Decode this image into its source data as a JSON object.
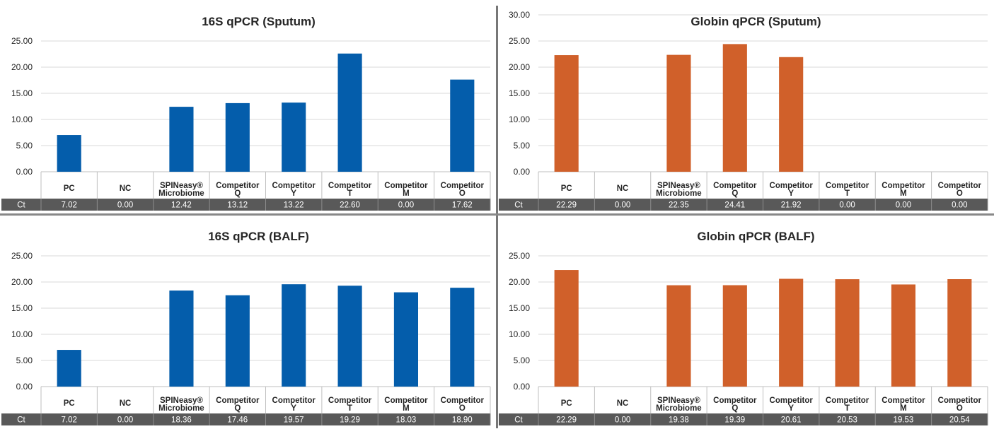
{
  "chart_data": [
    {
      "type": "bar",
      "title": "16S qPCR (Sputum)",
      "color": "#045dab",
      "categories": [
        [
          "PC"
        ],
        [
          "NC"
        ],
        [
          "SPINeasy®",
          "Microbiome"
        ],
        [
          "Competitor",
          "Q"
        ],
        [
          "Competitor",
          "Y"
        ],
        [
          "Competitor",
          "T"
        ],
        [
          "Competitor",
          "M"
        ],
        [
          "Competitor",
          "O"
        ]
      ],
      "table_label": "Ct",
      "values": [
        7.02,
        0.0,
        12.42,
        13.12,
        13.22,
        22.6,
        0.0,
        17.62
      ],
      "value_labels": [
        "7.02",
        "0.00",
        "12.42",
        "13.12",
        "13.22",
        "22.60",
        "0.00",
        "17.62"
      ],
      "ylim": [
        0,
        25
      ],
      "yticks": [
        "0.00",
        "5.00",
        "10.00",
        "15.00",
        "20.00",
        "25.00"
      ],
      "grid": true
    },
    {
      "type": "bar",
      "title": "Globin qPCR (Sputum)",
      "color": "#d0602a",
      "categories": [
        [
          "PC"
        ],
        [
          "NC"
        ],
        [
          "SPINeasy®",
          "Microbiome"
        ],
        [
          "Competitor",
          "Q"
        ],
        [
          "Competitor",
          "Y"
        ],
        [
          "Competitor",
          "T"
        ],
        [
          "Competitor",
          "M"
        ],
        [
          "Competitor",
          "O"
        ]
      ],
      "table_label": "Ct",
      "values": [
        22.29,
        0.0,
        22.35,
        24.41,
        21.92,
        0.0,
        0.0,
        0.0
      ],
      "value_labels": [
        "22.29",
        "0.00",
        "22.35",
        "24.41",
        "21.92",
        "0.00",
        "0.00",
        "0.00"
      ],
      "ylim": [
        0,
        30
      ],
      "yticks": [
        "0.00",
        "5.00",
        "10.00",
        "15.00",
        "20.00",
        "25.00",
        "30.00"
      ],
      "grid": true
    },
    {
      "type": "bar",
      "title": "16S qPCR (BALF)",
      "color": "#045dab",
      "categories": [
        [
          "PC"
        ],
        [
          "NC"
        ],
        [
          "SPINeasy®",
          "Microbiome"
        ],
        [
          "Competitor",
          "Q"
        ],
        [
          "Competitor",
          "Y"
        ],
        [
          "Competitor",
          "T"
        ],
        [
          "Competitor",
          "M"
        ],
        [
          "Competitor",
          "O"
        ]
      ],
      "table_label": "Ct",
      "values": [
        7.02,
        0.0,
        18.36,
        17.46,
        19.57,
        19.29,
        18.03,
        18.9
      ],
      "value_labels": [
        "7.02",
        "0.00",
        "18.36",
        "17.46",
        "19.57",
        "19.29",
        "18.03",
        "18.90"
      ],
      "ylim": [
        0,
        25
      ],
      "yticks": [
        "0.00",
        "5.00",
        "10.00",
        "15.00",
        "20.00",
        "25.00"
      ],
      "grid": true
    },
    {
      "type": "bar",
      "title": "Globin qPCR (BALF)",
      "color": "#d0602a",
      "categories": [
        [
          "PC"
        ],
        [
          "NC"
        ],
        [
          "SPINeasy®",
          "Microbiome"
        ],
        [
          "Competitor",
          "Q"
        ],
        [
          "Competitor",
          "Y"
        ],
        [
          "Competitor",
          "T"
        ],
        [
          "Competitor",
          "M"
        ],
        [
          "Competitor",
          "O"
        ]
      ],
      "table_label": "Ct",
      "values": [
        22.29,
        0.0,
        19.38,
        19.39,
        20.61,
        20.53,
        19.53,
        20.54
      ],
      "value_labels": [
        "22.29",
        "0.00",
        "19.38",
        "19.39",
        "20.61",
        "20.53",
        "19.53",
        "20.54"
      ],
      "ylim": [
        0,
        25
      ],
      "yticks": [
        "0.00",
        "5.00",
        "10.00",
        "15.00",
        "20.00",
        "25.00"
      ],
      "grid": true
    }
  ]
}
